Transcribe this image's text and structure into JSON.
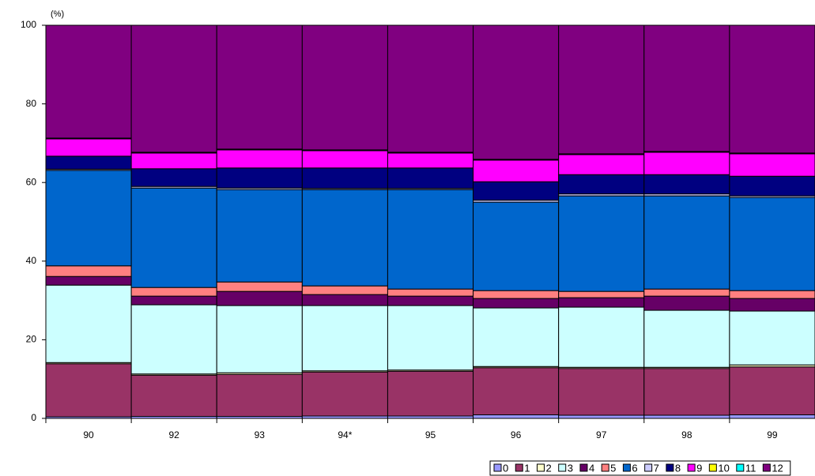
{
  "chart_data": {
    "type": "stacked_bar",
    "y_label": "(%)",
    "categories": [
      "90",
      "92",
      "93",
      "94*",
      "95",
      "96",
      "97",
      "98",
      "99"
    ],
    "ylim": [
      0,
      100
    ],
    "yticks": [
      0,
      20,
      40,
      60,
      80,
      100
    ],
    "series": [
      {
        "name": "0",
        "color": "#9999ff",
        "values": [
          0.4,
          0.5,
          0.5,
          0.6,
          0.6,
          0.9,
          0.8,
          0.8,
          0.9
        ]
      },
      {
        "name": "1",
        "color": "#993366",
        "values": [
          13.5,
          10.5,
          10.7,
          11.2,
          11.4,
          12.0,
          11.9,
          11.9,
          12.2
        ]
      },
      {
        "name": "2",
        "color": "#ffffcc",
        "values": [
          0.3,
          0.3,
          0.4,
          0.3,
          0.3,
          0.3,
          0.3,
          0.3,
          0.5
        ]
      },
      {
        "name": "3",
        "color": "#ccffff",
        "values": [
          19.7,
          17.6,
          17.1,
          16.6,
          16.4,
          14.9,
          15.3,
          14.5,
          13.7
        ]
      },
      {
        "name": "4",
        "color": "#660066",
        "values": [
          2.2,
          2.2,
          3.6,
          2.8,
          2.4,
          2.4,
          2.4,
          3.6,
          3.2
        ]
      },
      {
        "name": "5",
        "color": "#ff8080",
        "values": [
          2.7,
          2.2,
          2.4,
          2.2,
          1.8,
          2.0,
          1.6,
          1.8,
          2.0
        ]
      },
      {
        "name": "6",
        "color": "#0066cc",
        "values": [
          24.3,
          25.3,
          23.5,
          24.5,
          25.3,
          22.5,
          24.3,
          23.7,
          23.7
        ]
      },
      {
        "name": "7",
        "color": "#ccccff",
        "values": [
          0.3,
          0.4,
          0.4,
          0.3,
          0.3,
          0.5,
          0.5,
          0.5,
          0.4
        ]
      },
      {
        "name": "8",
        "color": "#000080",
        "values": [
          3.3,
          4.5,
          5.1,
          5.2,
          5.2,
          4.7,
          4.9,
          4.9,
          5.0
        ]
      },
      {
        "name": "9",
        "color": "#ff00ff",
        "values": [
          4.4,
          4.0,
          4.6,
          4.4,
          3.8,
          5.5,
          5.1,
          5.7,
          5.7
        ]
      },
      {
        "name": "10",
        "color": "#ffff00",
        "values": [
          0.1,
          0.1,
          0.1,
          0.1,
          0.1,
          0.1,
          0.1,
          0.1,
          0.1
        ]
      },
      {
        "name": "11",
        "color": "#00ffff",
        "values": [
          0.1,
          0.1,
          0.1,
          0.1,
          0.1,
          0.1,
          0.1,
          0.1,
          0.1
        ]
      },
      {
        "name": "12",
        "color": "#800080",
        "values": [
          28.7,
          32.3,
          31.5,
          31.7,
          32.3,
          34.1,
          32.7,
          32.1,
          32.5
        ]
      }
    ]
  }
}
